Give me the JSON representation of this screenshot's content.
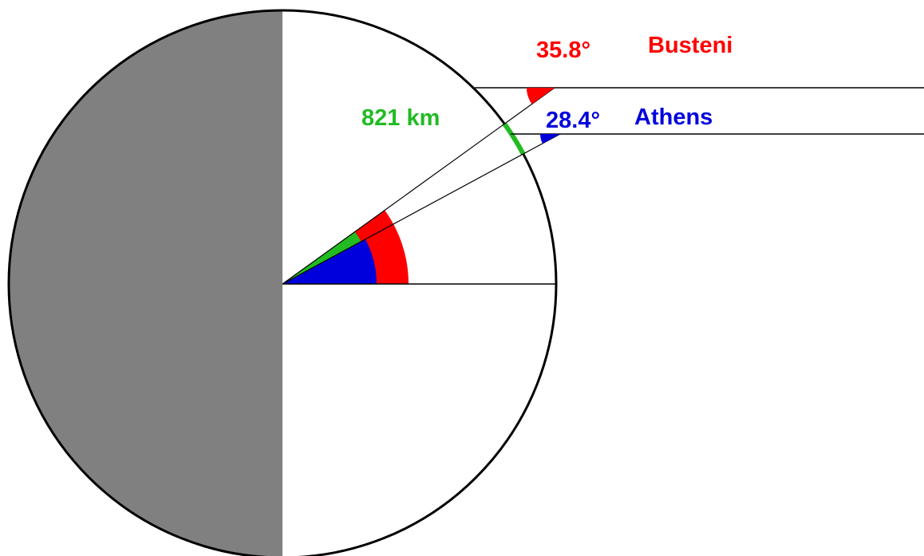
{
  "labels": {
    "busteni_angle": "35.8°",
    "busteni": "Busteni",
    "distance": "821 km",
    "athens_angle": "28.4°",
    "athens": "Athens"
  }
}
